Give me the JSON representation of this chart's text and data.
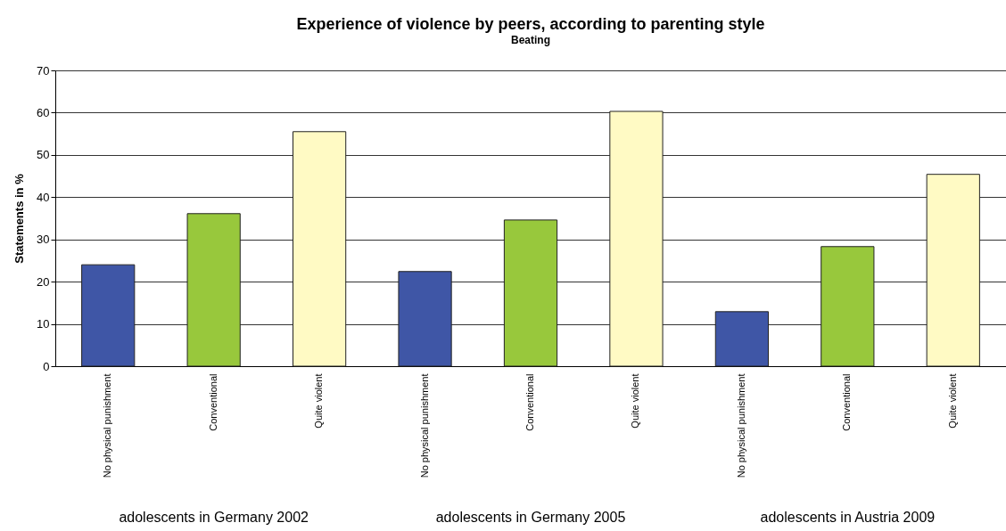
{
  "chart_data": {
    "type": "bar",
    "title": "Experience of violence by peers, according to parenting style",
    "subtitle": "Beating",
    "ylabel": "Statements in %",
    "categories": [
      "No physical punishment",
      "Conventional",
      "Quite violent",
      "No physical punishment",
      "Conventional",
      "Quite violent",
      "No physical punishment",
      "Conventional",
      "Quite violent"
    ],
    "values": [
      24.0,
      36.1,
      55.5,
      22.4,
      34.6,
      60.3,
      12.9,
      28.3,
      45.4
    ],
    "colors": [
      "#3f56a6",
      "#98c83c",
      "#fffac4",
      "#3f56a6",
      "#98c83c",
      "#fffac4",
      "#3f56a6",
      "#98c83c",
      "#fffac4"
    ],
    "ylim": [
      0,
      70
    ],
    "yticks": [
      0,
      10,
      20,
      30,
      40,
      50,
      60,
      70
    ],
    "grid": "y",
    "annotations": [
      "adolescents in Germany 2002",
      "adolescents in Germany 2005",
      "adolescents in Austria 2009"
    ]
  }
}
